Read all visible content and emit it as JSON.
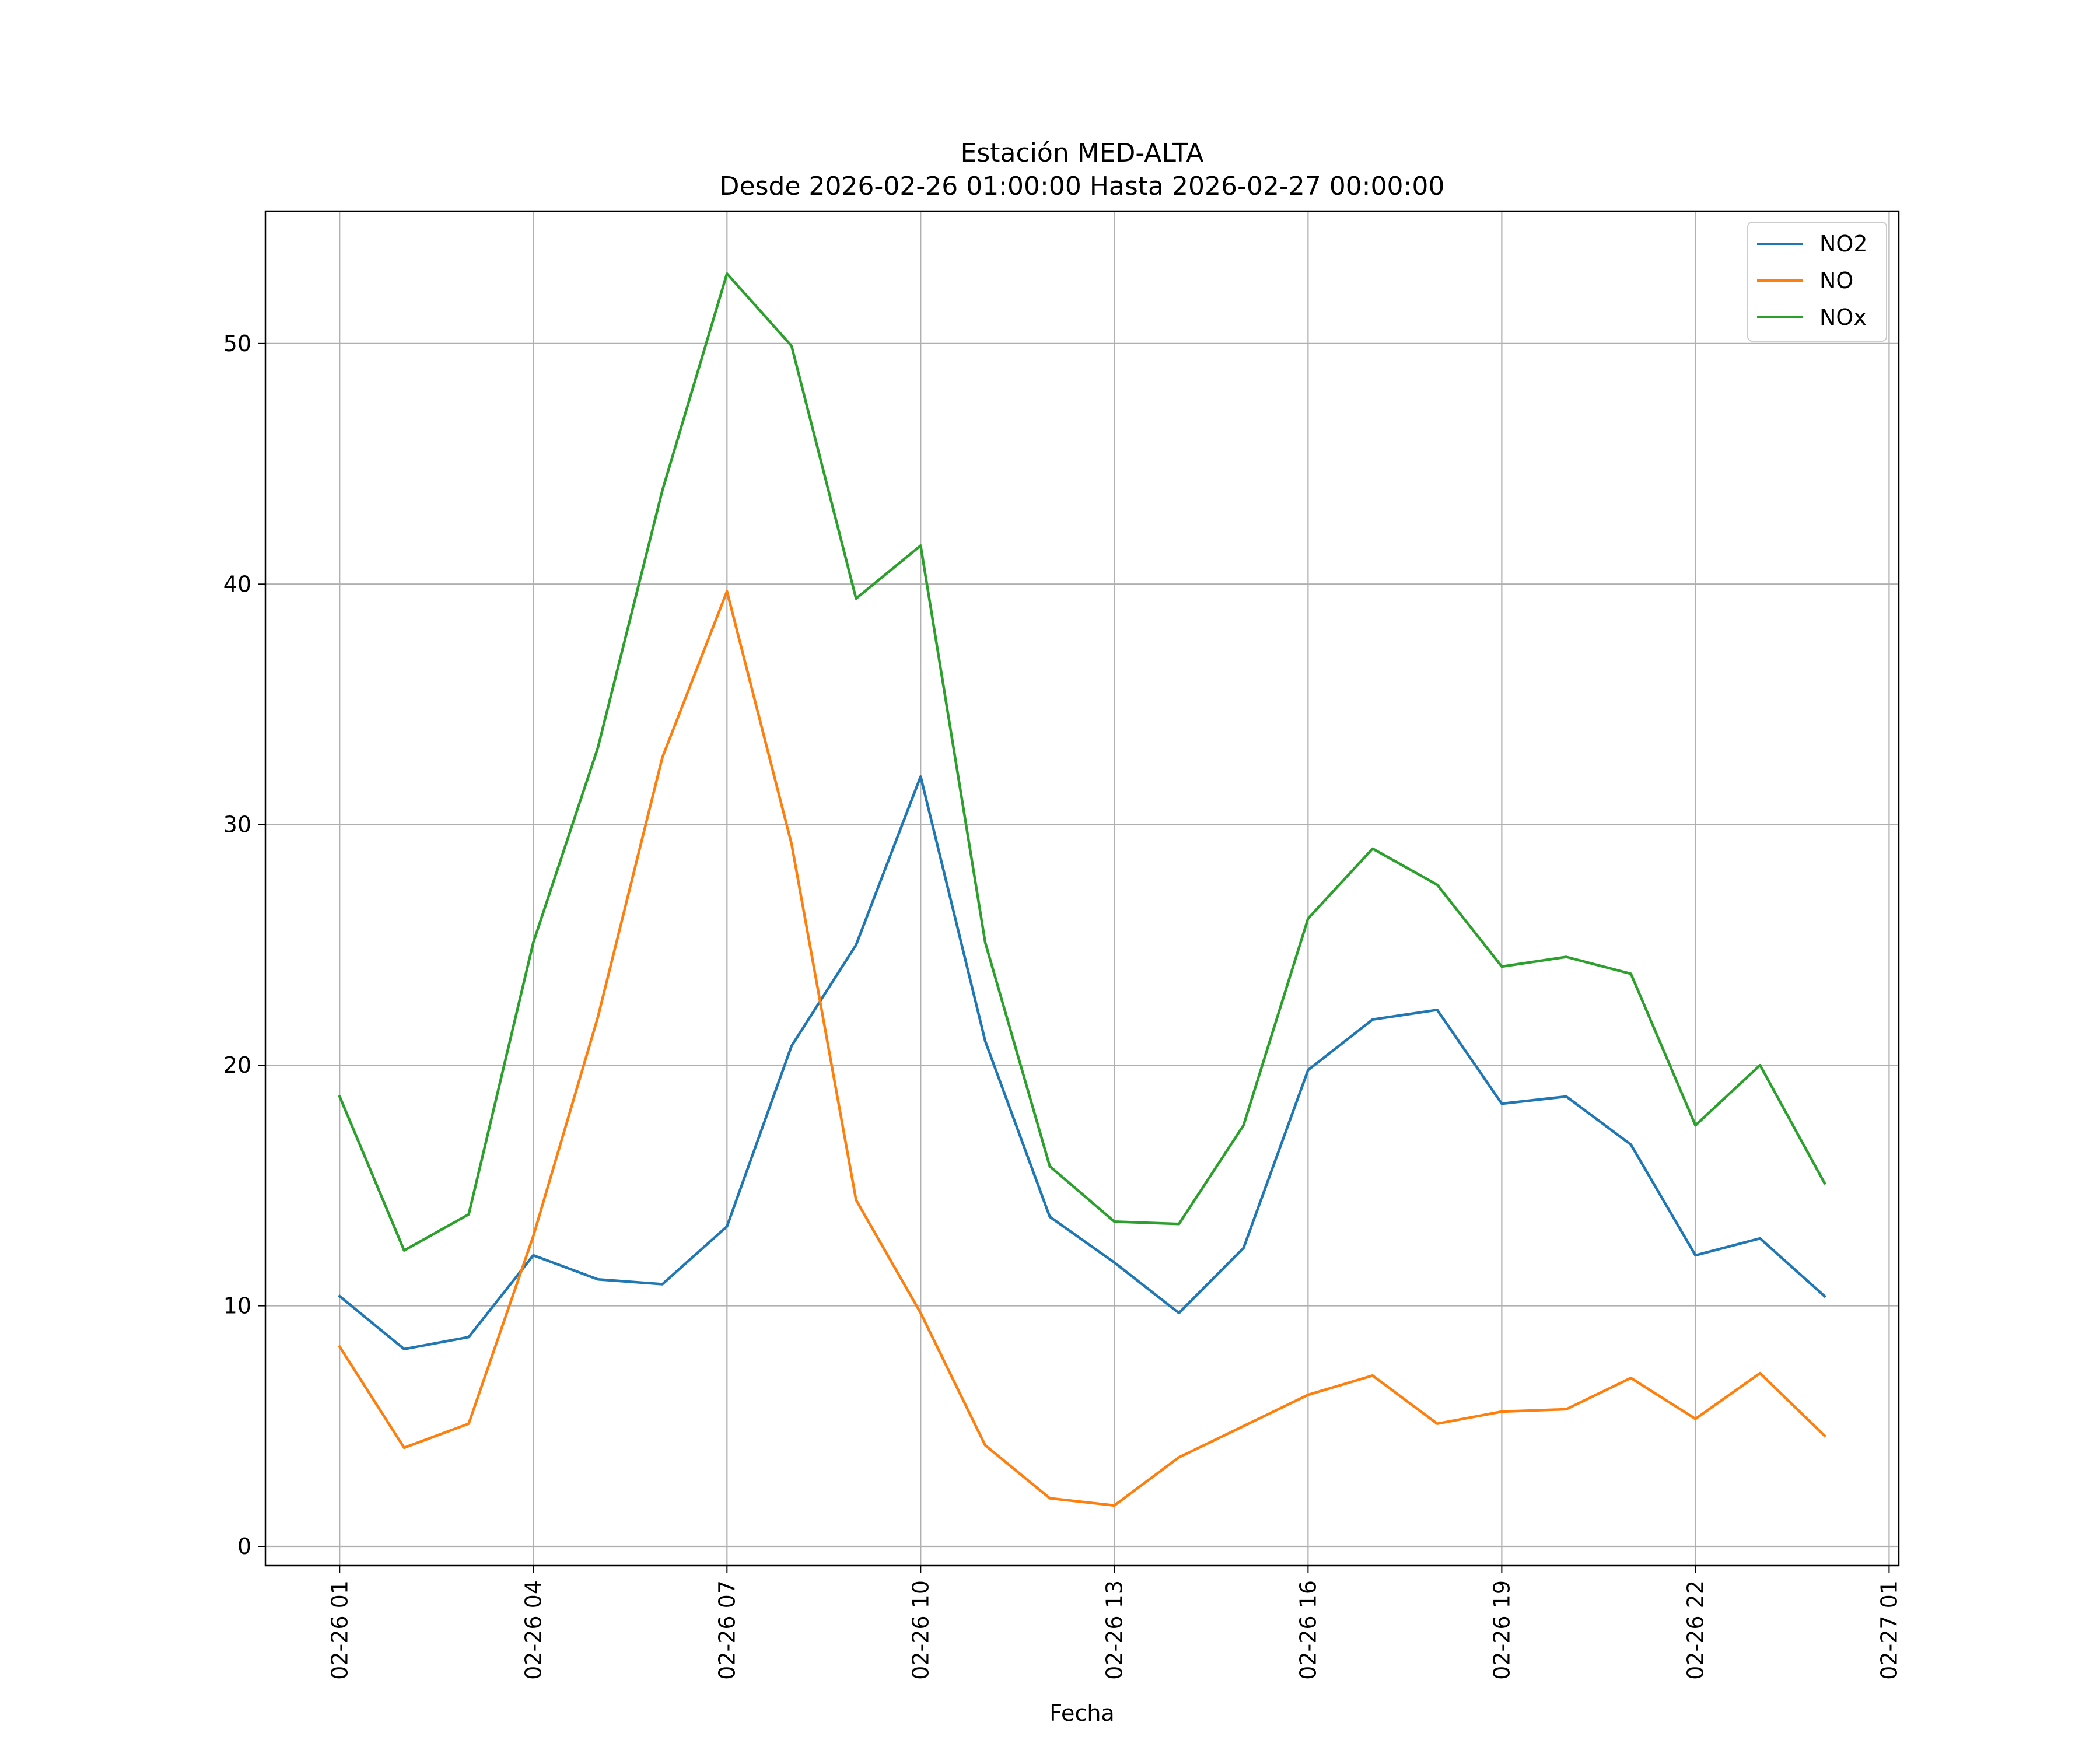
{
  "chart_data": {
    "type": "line",
    "title": "Estación MED-ALTA",
    "subtitle": "Desde 2026-02-26 01:00:00 Hasta 2026-02-27 00:00:00",
    "xlabel": "Fecha",
    "ylabel": "",
    "x": [
      "02-26 01",
      "02-26 02",
      "02-26 03",
      "02-26 04",
      "02-26 05",
      "02-26 06",
      "02-26 07",
      "02-26 08",
      "02-26 09",
      "02-26 10",
      "02-26 11",
      "02-26 12",
      "02-26 13",
      "02-26 14",
      "02-26 15",
      "02-26 16",
      "02-26 17",
      "02-26 18",
      "02-26 19",
      "02-26 20",
      "02-26 21",
      "02-26 22",
      "02-26 23",
      "02-27 00"
    ],
    "x_hours": [
      1,
      2,
      3,
      4,
      5,
      6,
      7,
      8,
      9,
      10,
      11,
      12,
      13,
      14,
      15,
      16,
      17,
      18,
      19,
      20,
      21,
      22,
      23,
      24
    ],
    "xlim": [
      -0.15,
      25.15
    ],
    "ylim": [
      -0.8,
      55.5
    ],
    "xticks": [
      {
        "hour": 1,
        "label": "02-26 01"
      },
      {
        "hour": 4,
        "label": "02-26 04"
      },
      {
        "hour": 7,
        "label": "02-26 07"
      },
      {
        "hour": 10,
        "label": "02-26 10"
      },
      {
        "hour": 13,
        "label": "02-26 13"
      },
      {
        "hour": 16,
        "label": "02-26 16"
      },
      {
        "hour": 19,
        "label": "02-26 19"
      },
      {
        "hour": 22,
        "label": "02-26 22"
      },
      {
        "hour": 25,
        "label": "02-27 01"
      }
    ],
    "yticks": [
      0,
      10,
      20,
      30,
      40,
      50
    ],
    "grid": true,
    "legend_position": "top-right",
    "series": [
      {
        "name": "NO2",
        "color": "#1f77b4",
        "values": [
          10.4,
          8.2,
          8.7,
          12.1,
          11.1,
          10.9,
          13.3,
          20.8,
          25.0,
          32.0,
          21.0,
          13.7,
          11.8,
          9.7,
          12.4,
          19.8,
          21.9,
          22.3,
          18.4,
          18.7,
          16.7,
          12.1,
          12.8,
          10.4
        ]
      },
      {
        "name": "NO",
        "color": "#ff7f0e",
        "values": [
          8.3,
          4.1,
          5.1,
          12.9,
          22.0,
          32.8,
          39.7,
          29.2,
          14.4,
          9.7,
          4.2,
          2.0,
          1.7,
          3.7,
          5.0,
          6.3,
          7.1,
          5.1,
          5.6,
          5.7,
          7.0,
          5.3,
          7.2,
          4.6
        ]
      },
      {
        "name": "NOx",
        "color": "#2ca02c",
        "values": [
          18.7,
          12.3,
          13.8,
          25.1,
          33.2,
          43.9,
          52.9,
          49.9,
          39.4,
          41.6,
          25.1,
          15.8,
          13.5,
          13.4,
          17.5,
          26.1,
          29.0,
          27.5,
          24.1,
          24.5,
          23.8,
          17.5,
          20.0,
          15.1
        ]
      }
    ]
  }
}
